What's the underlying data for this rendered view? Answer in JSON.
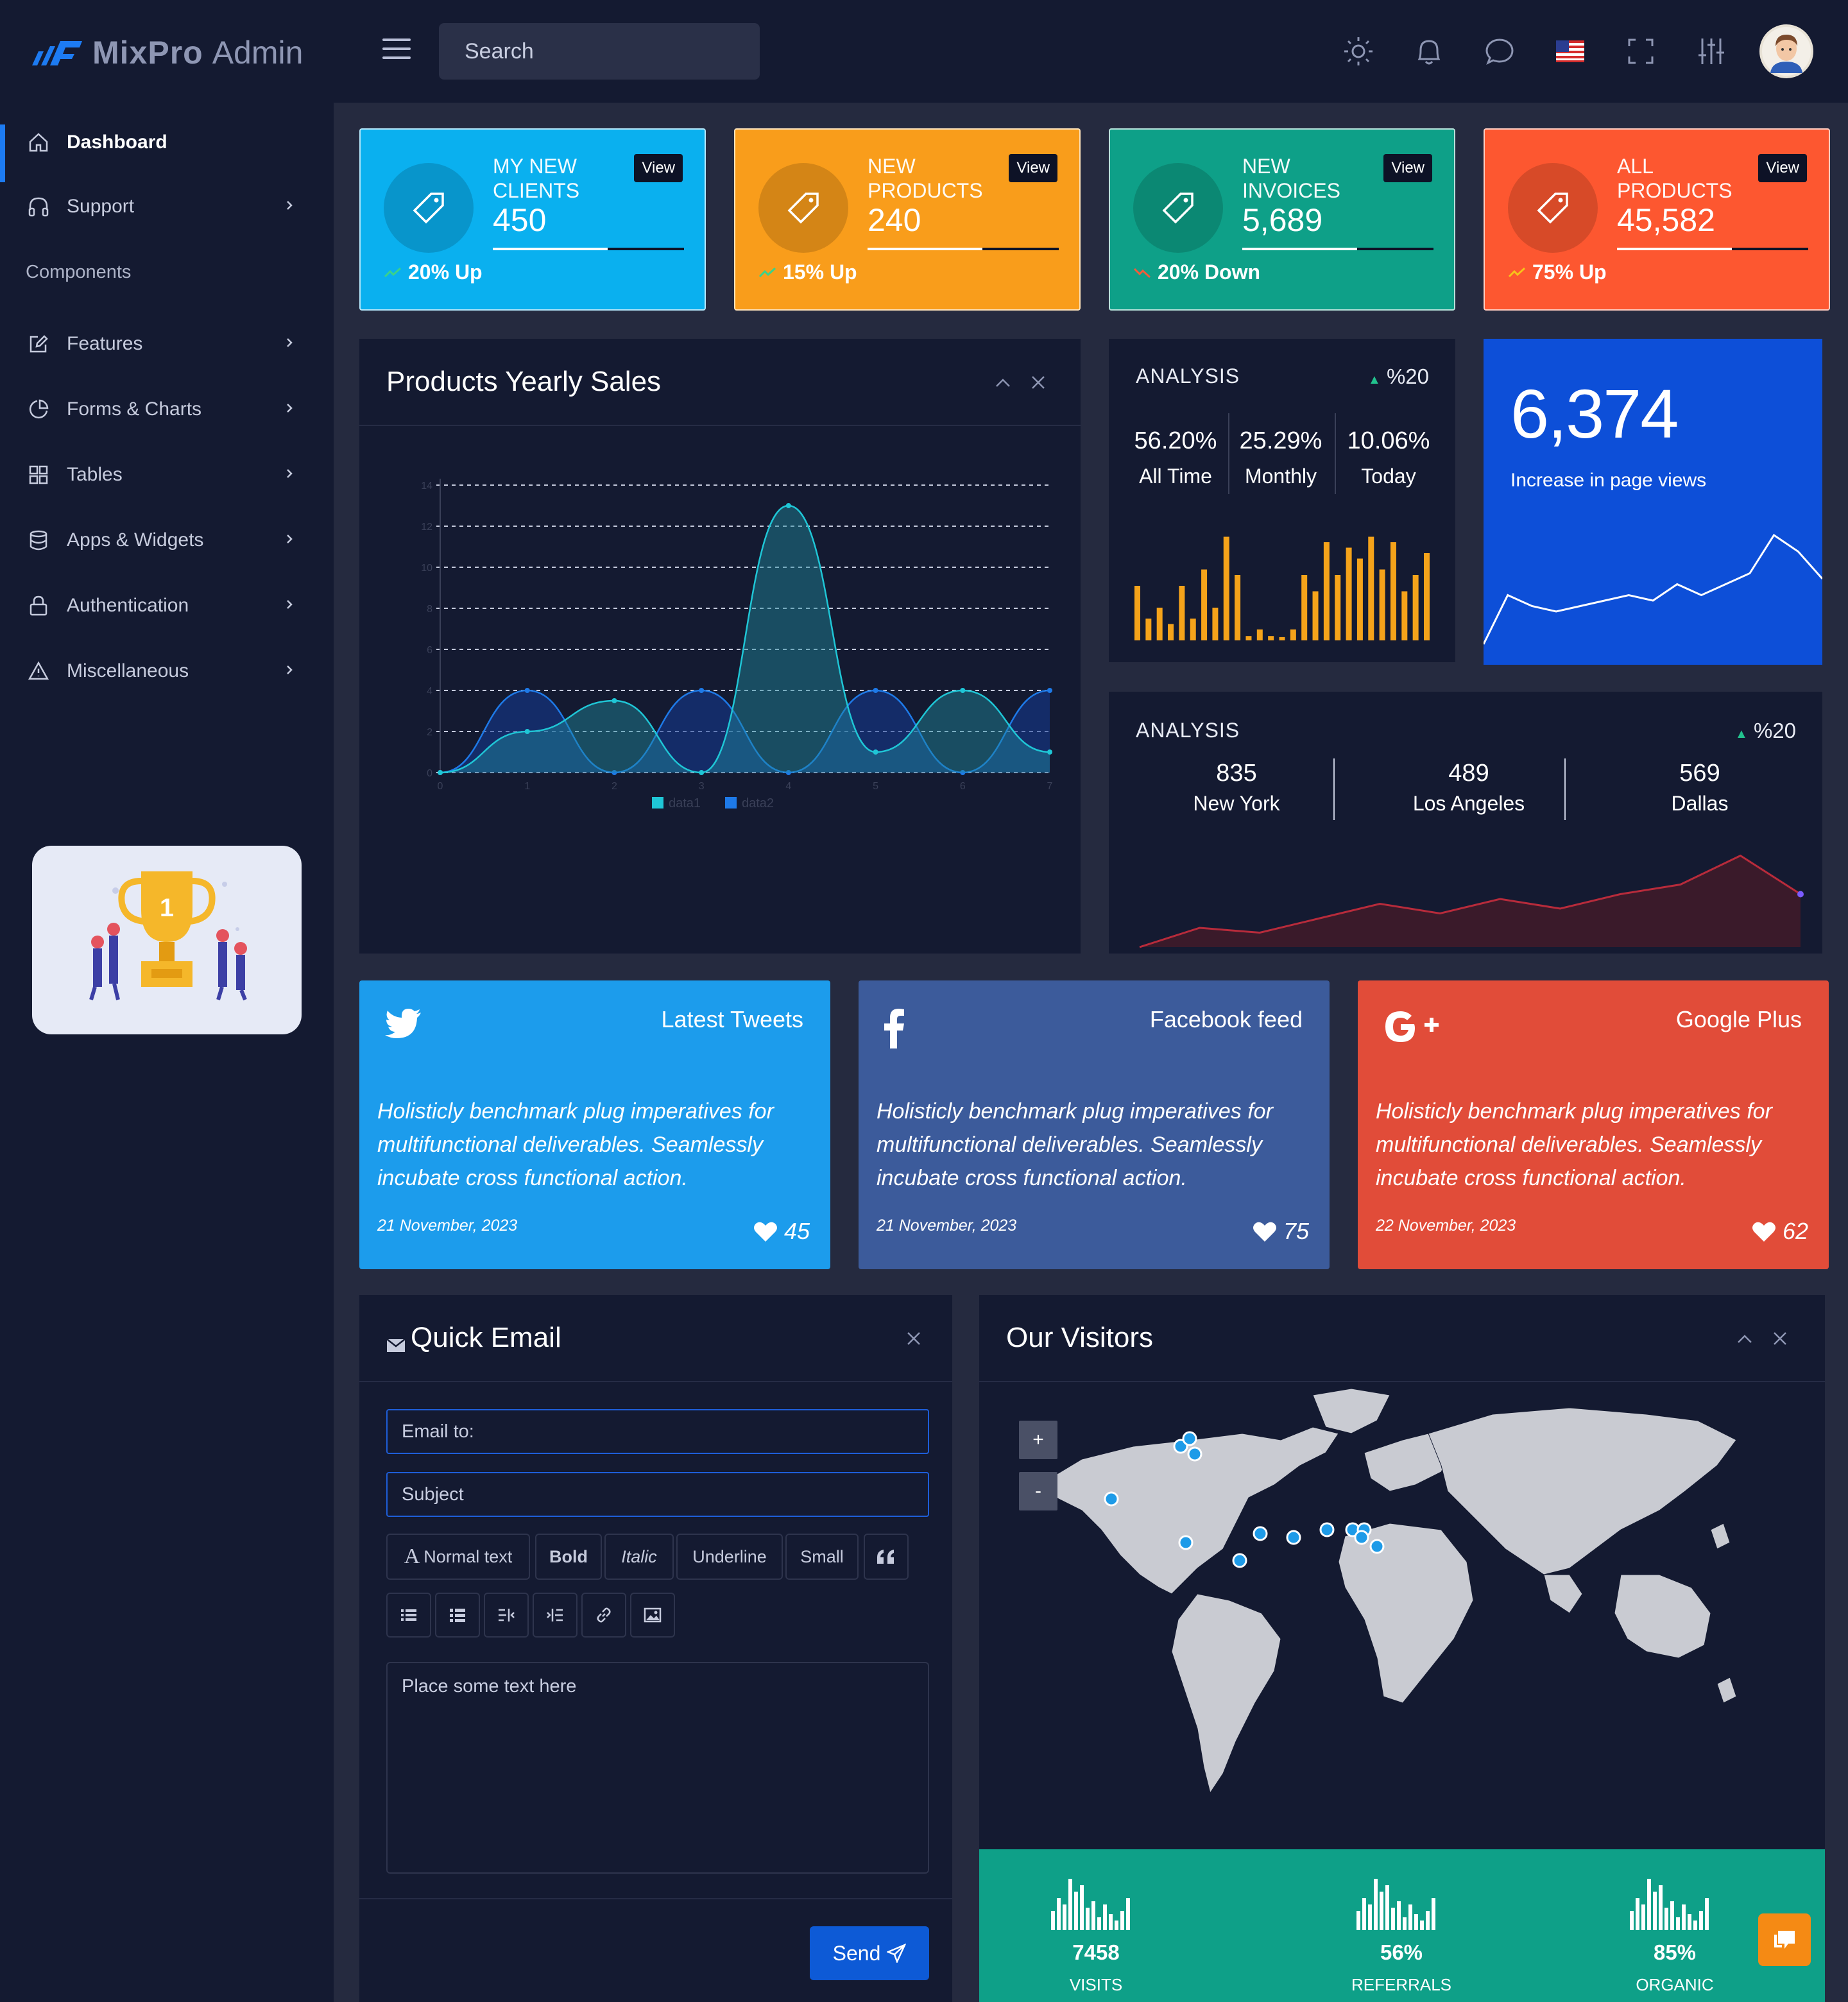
{
  "app": {
    "brand_bold": "MixPro",
    "brand_light": "Admin"
  },
  "header": {
    "search_placeholder": "Search",
    "icons": [
      "sun-icon",
      "bell-icon",
      "chat-icon",
      "us-flag-icon",
      "fullscreen-icon",
      "settings-sliders-icon"
    ]
  },
  "sidebar": {
    "items": [
      {
        "label": "Dashboard",
        "icon": "home-icon",
        "active": true
      },
      {
        "label": "Support",
        "icon": "headphones-icon",
        "has_children": true
      },
      {
        "label": "Features",
        "icon": "edit-icon",
        "has_children": true
      },
      {
        "label": "Forms & Charts",
        "icon": "pie-chart-icon",
        "has_children": true
      },
      {
        "label": "Tables",
        "icon": "grid-icon",
        "has_children": true
      },
      {
        "label": "Apps & Widgets",
        "icon": "database-icon",
        "has_children": true
      },
      {
        "label": "Authentication",
        "icon": "lock-icon",
        "has_children": true
      },
      {
        "label": "Miscellaneous",
        "icon": "alert-triangle-icon",
        "has_children": true
      }
    ],
    "components_heading": "Components"
  },
  "stats": [
    {
      "title": "MY NEW CLIENTS",
      "value": "450",
      "view": "View",
      "trend": "20% Up",
      "progress": 0.6,
      "color": "#0ab0ef"
    },
    {
      "title": "NEW PRODUCTS",
      "value": "240",
      "view": "View",
      "trend": "15% Up",
      "progress": 0.6,
      "color": "#f99d1b"
    },
    {
      "title": "NEW INVOICES",
      "value": "5,689",
      "view": "View",
      "trend": "20% Down",
      "progress": 0.6,
      "color": "#0ea088"
    },
    {
      "title": "ALL PRODUCTS",
      "value": "45,582",
      "view": "View",
      "trend": "75% Up",
      "progress": 0.6,
      "color": "#fd5730"
    }
  ],
  "yearly_sales": {
    "title": "Products Yearly Sales",
    "legend": [
      "data1",
      "data2"
    ]
  },
  "chart_data": {
    "type": "area",
    "x": [
      0,
      1,
      2,
      3,
      4,
      5,
      6,
      7
    ],
    "series": [
      {
        "name": "data1",
        "values": [
          0,
          2,
          3.5,
          0,
          13,
          1,
          4,
          1
        ]
      },
      {
        "name": "data2",
        "values": [
          0,
          4,
          0,
          4,
          0,
          4,
          0,
          4
        ]
      }
    ],
    "yticks": [
      "0",
      "2",
      "4",
      "6",
      "8",
      "10",
      "12",
      "14"
    ],
    "xticks": [
      "0",
      "1",
      "2",
      "3",
      "4",
      "5",
      "6",
      "7"
    ],
    "ylim": [
      0,
      14
    ],
    "grid": true,
    "legend_position": "bottom"
  },
  "analysis1": {
    "label": "ANALYSIS",
    "pct": "%20",
    "metrics": [
      {
        "value": "56.20%",
        "label": "All Time"
      },
      {
        "value": "25.29%",
        "label": "Monthly"
      },
      {
        "value": "10.06%",
        "label": "Today"
      }
    ],
    "bars": [
      0.5,
      0.2,
      0.3,
      0.15,
      0.5,
      0.2,
      0.65,
      0.3,
      0.95,
      0.6,
      0.04,
      0.1,
      0.04,
      0.03,
      0.1,
      0.6,
      0.45,
      0.9,
      0.6,
      0.85,
      0.75,
      0.95,
      0.65,
      0.9,
      0.45,
      0.6,
      0.8
    ],
    "bar_color": "#f5a31a"
  },
  "page_views": {
    "value": "6,374",
    "label": "Increase in page views",
    "series": [
      0,
      0.45,
      0.35,
      0.3,
      0.35,
      0.4,
      0.45,
      0.4,
      0.55,
      0.45,
      0.55,
      0.65,
      1,
      0.85,
      0.6
    ]
  },
  "analysis2": {
    "label": "ANALYSIS",
    "pct": "%20",
    "cities": [
      {
        "value": "835",
        "label": "New York"
      },
      {
        "value": "489",
        "label": "Los Angeles"
      },
      {
        "value": "569",
        "label": "Dallas"
      }
    ],
    "series": [
      0,
      0.2,
      0.15,
      0.3,
      0.45,
      0.35,
      0.5,
      0.4,
      0.55,
      0.65,
      0.95,
      0.55
    ]
  },
  "social": [
    {
      "title": "Latest Tweets",
      "icon": "twitter-icon",
      "text": "Holisticly benchmark plug imperatives for multifunctional deliverables. Seamlessly incubate cross functional action.",
      "date": "21 November, 2023",
      "likes": "45",
      "color": "#1c9cec"
    },
    {
      "title": "Facebook feed",
      "icon": "facebook-icon",
      "text": "Holisticly benchmark plug imperatives for multifunctional deliverables. Seamlessly incubate cross functional action.",
      "date": "21 November, 2023",
      "likes": "75",
      "color": "#3c5b9b"
    },
    {
      "title": "Google Plus",
      "icon": "google-plus-icon",
      "text": "Holisticly benchmark plug imperatives for multifunctional deliverables. Seamlessly incubate cross functional action.",
      "date": "22 November, 2023",
      "likes": "62",
      "color": "#e14c39"
    }
  ],
  "quick_email": {
    "title": "Quick Email",
    "to_placeholder": "Email to:",
    "subject_placeholder": "Subject",
    "toolbar": [
      "Normal text",
      "Bold",
      "Italic",
      "Underline",
      "Small"
    ],
    "body_placeholder": "Place some text here",
    "send_label": "Send"
  },
  "visitors": {
    "title": "Our Visitors",
    "zoom_in": "+",
    "zoom_out": "-",
    "stats": [
      {
        "value": "7458",
        "label": "VISITS"
      },
      {
        "value": "56%",
        "label": "REFERRALS"
      },
      {
        "value": "85%",
        "label": "ORGANIC"
      }
    ]
  }
}
